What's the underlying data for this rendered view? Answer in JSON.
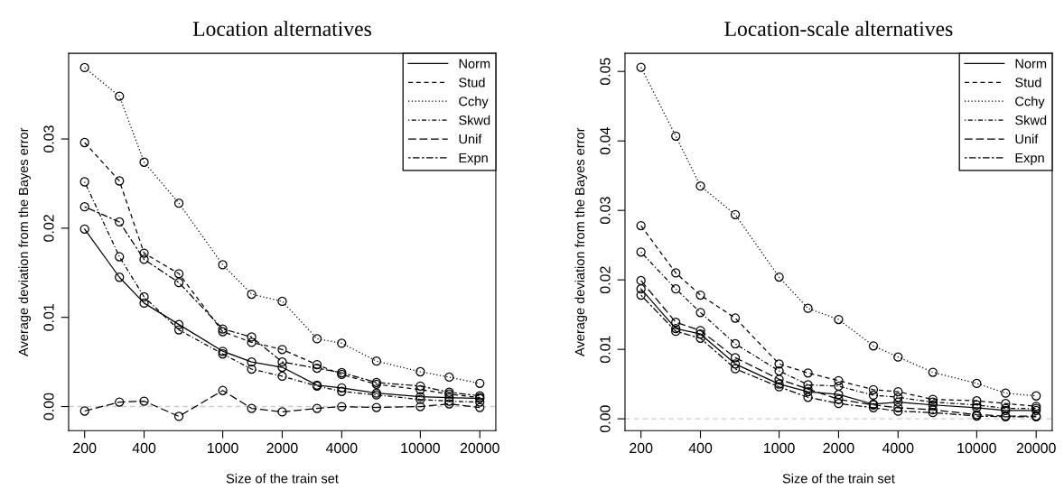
{
  "chart_data": [
    {
      "type": "line",
      "title": "Location alternatives",
      "xlabel": "Size of the train set",
      "ylabel": "Average deviation from the Bayes error",
      "log": "x",
      "marker": "circle",
      "legend": "top right",
      "grid": false,
      "x": [
        200,
        300,
        400,
        600,
        1000,
        1400,
        2000,
        3000,
        4000,
        6000,
        10000,
        14000,
        20000
      ],
      "xlim": [
        166,
        24100
      ],
      "xticks": [
        200,
        400,
        1000,
        2000,
        4000,
        10000,
        20000
      ],
      "ylim": [
        -0.0027,
        0.0396
      ],
      "yticks": [
        {
          "value": 0,
          "label": "0.00"
        },
        {
          "value": 0.01,
          "label": "0.01"
        },
        {
          "value": 0.02,
          "label": "0.02"
        },
        {
          "value": 0.03,
          "label": "0.03"
        }
      ],
      "ref_lines": [
        {
          "axis": "y",
          "value": 0,
          "color": "#cccccc",
          "line_style": "dashed"
        }
      ],
      "series": [
        {
          "name": "Norm",
          "color": "#000000",
          "line_style": "solid",
          "values": [
            0.0199,
            0.0145,
            0.0116,
            0.0092,
            0.0062,
            0.005,
            0.0044,
            0.0024,
            0.0021,
            0.0015,
            0.0011,
            0.001,
            0.0009
          ]
        },
        {
          "name": "Stud",
          "color": "#000000",
          "line_style": "dashed",
          "values": [
            0.0296,
            0.0253,
            0.0172,
            0.0149,
            0.0084,
            0.0072,
            0.0064,
            0.0047,
            0.0036,
            0.0025,
            0.0019,
            0.0014,
            0.001
          ]
        },
        {
          "name": "Cchy",
          "color": "#000000",
          "line_style": "dotted",
          "values": [
            0.038,
            0.0348,
            0.0274,
            0.0228,
            0.0159,
            0.0126,
            0.0118,
            0.0076,
            0.0071,
            0.0051,
            0.0039,
            0.0033,
            0.0026
          ]
        },
        {
          "name": "Skwd",
          "color": "#000000",
          "line_style": "dashdot",
          "values": [
            0.0252,
            0.0168,
            0.0123,
            0.0086,
            0.0059,
            0.0042,
            0.0034,
            0.0023,
            0.0017,
            0.0013,
            0.0008,
            0.0006,
            0.0005
          ]
        },
        {
          "name": "Unif",
          "color": "#000000",
          "line_style": "longdash",
          "values": [
            -0.0005,
            0.0005,
            0.0006,
            -0.0011,
            0.0018,
            -0.0002,
            -0.0006,
            -0.0002,
            0.0,
            -0.0001,
            0.0,
            0.0003,
            -0.0001
          ]
        },
        {
          "name": "Expn",
          "color": "#000000",
          "line_style": "twodash",
          "values": [
            0.0224,
            0.0207,
            0.0165,
            0.0139,
            0.0087,
            0.0078,
            0.005,
            0.0043,
            0.0038,
            0.0027,
            0.0023,
            0.0016,
            0.0012
          ]
        }
      ]
    },
    {
      "type": "line",
      "title": "Location-scale alternatives",
      "xlabel": "Size of the train set",
      "ylabel": "Average deviation from the Bayes error",
      "log": "x",
      "marker": "circle",
      "legend": "top right",
      "grid": false,
      "x": [
        200,
        300,
        400,
        600,
        1000,
        1400,
        2000,
        3000,
        4000,
        6000,
        10000,
        14000,
        20000
      ],
      "xlim": [
        166,
        24100
      ],
      "xticks": [
        200,
        400,
        1000,
        2000,
        4000,
        10000,
        20000
      ],
      "ylim": [
        -0.0017,
        0.0526
      ],
      "yticks": [
        {
          "value": 0,
          "label": "0.00"
        },
        {
          "value": 0.01,
          "label": "0.01"
        },
        {
          "value": 0.02,
          "label": "0.02"
        },
        {
          "value": 0.03,
          "label": "0.03"
        },
        {
          "value": 0.04,
          "label": "0.04"
        },
        {
          "value": 0.05,
          "label": "0.05"
        }
      ],
      "ref_lines": [
        {
          "axis": "y",
          "value": 0,
          "color": "#cccccc",
          "line_style": "dashed"
        }
      ],
      "series": [
        {
          "name": "Norm",
          "color": "#000000",
          "line_style": "solid",
          "values": [
            0.0187,
            0.013,
            0.0122,
            0.0079,
            0.005,
            0.0039,
            0.0035,
            0.0021,
            0.0024,
            0.002,
            0.0016,
            0.0012,
            0.0012
          ]
        },
        {
          "name": "Stud",
          "color": "#000000",
          "line_style": "dashed",
          "values": [
            0.0278,
            0.021,
            0.0178,
            0.0145,
            0.0079,
            0.0066,
            0.0055,
            0.0042,
            0.0039,
            0.0028,
            0.0026,
            0.0022,
            0.0018
          ]
        },
        {
          "name": "Cchy",
          "color": "#000000",
          "line_style": "dotted",
          "values": [
            0.0506,
            0.0407,
            0.0335,
            0.0294,
            0.0204,
            0.0159,
            0.0143,
            0.0105,
            0.0089,
            0.0067,
            0.0051,
            0.0037,
            0.0033
          ]
        },
        {
          "name": "Skwd",
          "color": "#000000",
          "line_style": "dashdot",
          "values": [
            0.024,
            0.0187,
            0.0153,
            0.0108,
            0.0069,
            0.0049,
            0.0047,
            0.0034,
            0.0031,
            0.0024,
            0.002,
            0.0015,
            0.0015
          ]
        },
        {
          "name": "Unif",
          "color": "#000000",
          "line_style": "longdash",
          "values": [
            0.0199,
            0.0139,
            0.0127,
            0.0088,
            0.0057,
            0.0043,
            0.0028,
            0.002,
            0.0016,
            0.0013,
            0.0006,
            0.0004,
            0.0004
          ]
        },
        {
          "name": "Expn",
          "color": "#000000",
          "line_style": "twodash",
          "values": [
            0.0178,
            0.0126,
            0.0116,
            0.0072,
            0.0046,
            0.0031,
            0.0022,
            0.0016,
            0.0011,
            0.0009,
            0.0004,
            0.0003,
            0.0003
          ]
        }
      ]
    }
  ]
}
